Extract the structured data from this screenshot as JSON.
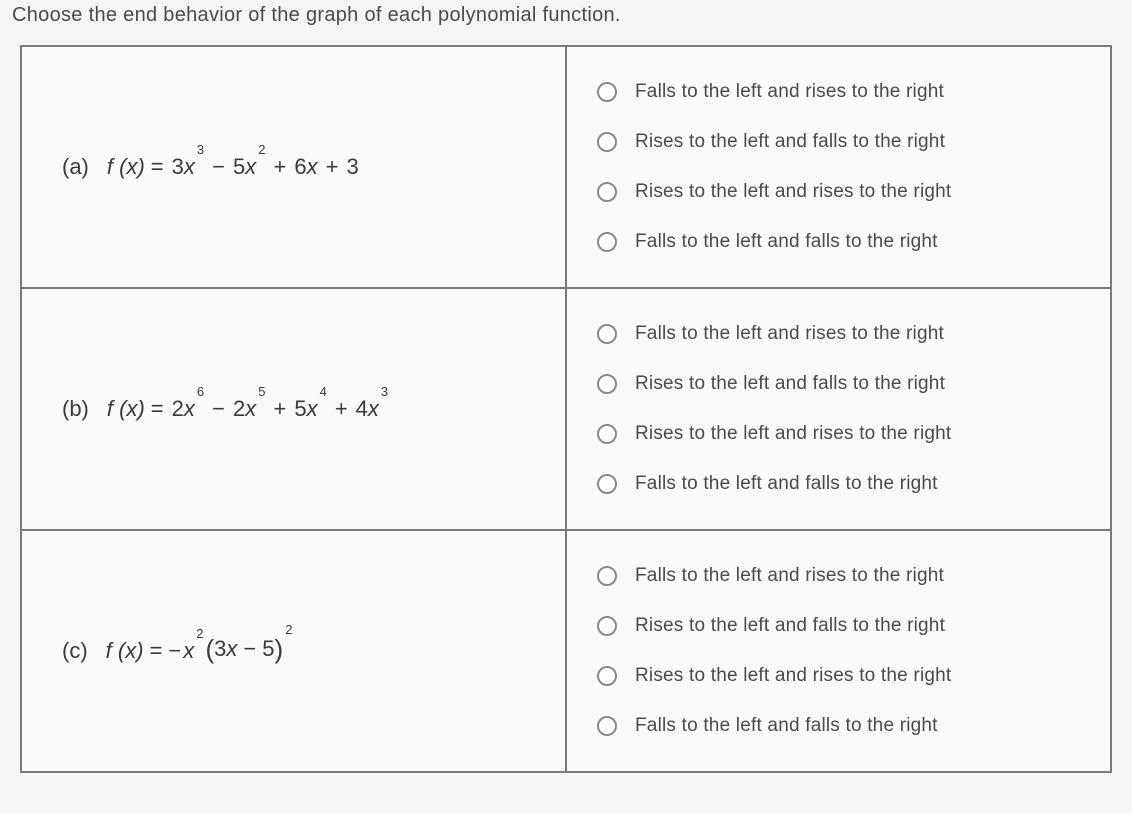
{
  "instruction": "Choose the end behavior of the graph of each polynomial function.",
  "options": [
    "Falls to the left and rises to the right",
    "Rises to the left and falls to the right",
    "Rises to the left and rises to the right",
    "Falls to the left and falls to the right"
  ],
  "parts": {
    "a": {
      "label": "(a)",
      "fx": "f (x)",
      "eq": "=",
      "terms": [
        {
          "coef": "3",
          "var": "x",
          "exp": "3"
        },
        {
          "op": "−",
          "coef": "5",
          "var": "x",
          "exp": "2"
        },
        {
          "op": "+",
          "coef": "6",
          "var": "x",
          "exp": ""
        },
        {
          "op": "+",
          "coef": "3",
          "var": "",
          "exp": ""
        }
      ]
    },
    "b": {
      "label": "(b)",
      "fx": "f (x)",
      "eq": "=",
      "terms": [
        {
          "coef": "2",
          "var": "x",
          "exp": "6"
        },
        {
          "op": "−",
          "coef": "2",
          "var": "x",
          "exp": "5"
        },
        {
          "op": "+",
          "coef": "5",
          "var": "x",
          "exp": "4"
        },
        {
          "op": "+",
          "coef": "4",
          "var": "x",
          "exp": "3"
        }
      ]
    },
    "c": {
      "label": "(c)",
      "fx": "f (x)",
      "eq": "=",
      "lead_sign": "−",
      "lead_var": "x",
      "lead_exp": "2",
      "paren_inner_a": "3",
      "paren_inner_var": "x",
      "paren_inner_op": "−",
      "paren_inner_b": "5",
      "paren_exp": "2"
    }
  },
  "styling": {
    "body_bg": "#e8e8e8",
    "page_bg": "#f5f5f5",
    "table_bg": "#fafafa",
    "border_color": "#7a7a7a",
    "text_color": "#4a4a4a",
    "radio_border": "#8a8a8a",
    "instruction_fontsize": 20,
    "option_fontsize": 19,
    "formula_fontsize": 22,
    "sup_fontsize": 13
  }
}
